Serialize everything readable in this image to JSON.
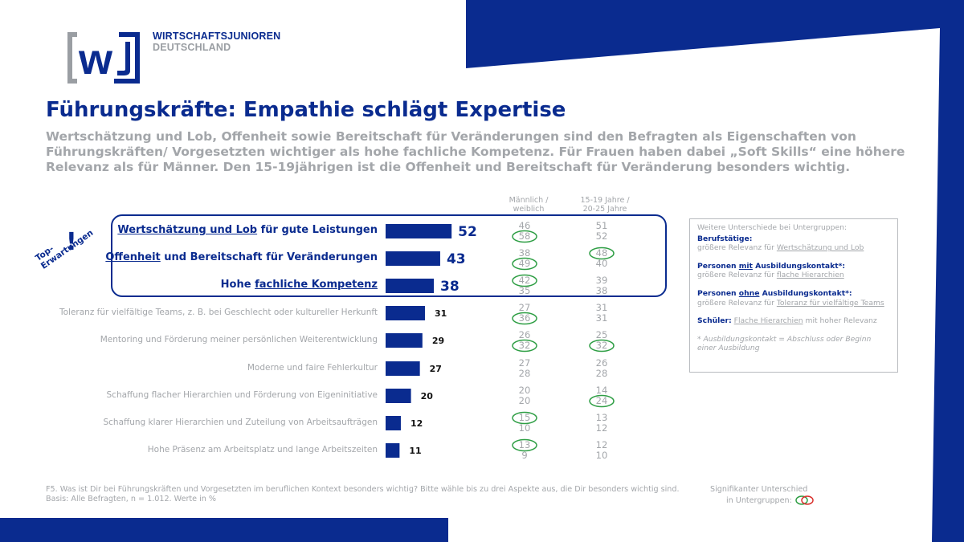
{
  "logo": {
    "letters": "[wJ]",
    "line1": "WIRTSCHAFTSJUNIOREN",
    "line2": "DEUTSCHLAND"
  },
  "title": "Führungskräfte: Empathie schlägt Expertise",
  "subtitle": "Wertschätzung und Lob, Offenheit sowie Bereitschaft für Veränderungen sind den Befragten als Eigenschaften von Führungskräften/ Vorgesetzten wichtiger als hohe fachliche Kompetenz. Für Frauen haben dabei „Soft Skills“ eine höhere Relevanz als für Männer. Den 15-19jährigen ist die Offenheit und Bereitschaft für Veränderung besonders wichtig.",
  "column_headers": {
    "gender": "Männlich /\nweiblich",
    "age": "15-19 Jahre /\n20-25 Jahre"
  },
  "top_expectations": {
    "mark": "!",
    "label": "Top-\nErwartungen"
  },
  "colors": {
    "brand": "#0a2b8f",
    "gray": "#a3a6aa",
    "significant_green": "#2e9e44",
    "significant_red": "#d9302c"
  },
  "chart_data": {
    "type": "bar",
    "orientation": "horizontal",
    "unit": "%",
    "categories": [
      "Wertschätzung und Lob für gute Leistungen",
      "Offenheit und Bereitschaft für Veränderungen",
      "Hohe fachliche Kompetenz",
      "Toleranz für vielfältige Teams, z. B. bei Geschlecht oder kultureller Herkunft",
      "Mentoring und Förderung meiner persönlichen Weiterentwicklung",
      "Moderne und faire Fehlerkultur",
      "Schaffung flacher Hierarchien und Förderung von Eigeninitiative",
      "Schaffung klarer Hierarchien und Zuteilung von Arbeitsaufträgen",
      "Hohe Präsenz am Arbeitsplatz und lange Arbeitszeiten"
    ],
    "values": [
      52,
      43,
      38,
      31,
      29,
      27,
      20,
      12,
      11
    ],
    "top_count": 3,
    "label_underline": [
      "Wertschätzung und Lob",
      "Offenheit",
      "fachliche Kompetenz",
      "",
      "",
      "",
      "",
      "",
      ""
    ],
    "subgroups": {
      "maennlich": [
        46,
        38,
        42,
        27,
        26,
        27,
        20,
        15,
        13
      ],
      "weiblich": [
        58,
        49,
        35,
        36,
        32,
        28,
        20,
        10,
        9
      ],
      "age_15_19": [
        51,
        48,
        39,
        31,
        25,
        26,
        14,
        13,
        12
      ],
      "age_20_25": [
        52,
        40,
        38,
        31,
        32,
        28,
        24,
        12,
        10
      ]
    },
    "significant": {
      "maennlich": [
        false,
        false,
        true,
        false,
        false,
        false,
        false,
        true,
        true
      ],
      "weiblich": [
        true,
        true,
        false,
        true,
        true,
        false,
        false,
        false,
        false
      ],
      "age_15_19": [
        false,
        true,
        false,
        false,
        false,
        false,
        false,
        false,
        false
      ],
      "age_20_25": [
        false,
        false,
        false,
        false,
        true,
        false,
        true,
        false,
        false
      ]
    }
  },
  "side_box": {
    "intro": "Weitere Unterschiede bei Untergruppen:",
    "g1_head": "Berufstätige:",
    "g1_text_a": "größere Relevanz für ",
    "g1_text_b": "Wertschätzung und Lob",
    "g2_head_a": "Personen ",
    "g2_head_b": "mit",
    "g2_head_c": " Ausbildungskontakt*:",
    "g2_text_a": "größere Relevanz für ",
    "g2_text_b": "flache Hierarchien",
    "g3_head_a": "Personen ",
    "g3_head_b": "ohne",
    "g3_head_c": " Ausbildungskontakt*:",
    "g3_text_a": "größere Relevanz für ",
    "g3_text_b": "Toleranz für vielfältige Teams",
    "g4_head": "Schüler:",
    "g4_text_a": " ",
    "g4_text_b": "Flache Hierarchien",
    "g4_text_c": " mit hoher Relevanz",
    "note": "* Ausbildungskontakt = Abschluss oder Beginn einer Ausbildung"
  },
  "footer": {
    "question": "F5. Was ist Dir bei Führungskräften und Vorgesetzten im beruflichen Kontext besonders wichtig? Bitte wähle bis zu drei Aspekte aus, die Dir besonders wichtig sind.",
    "basis": "Basis: Alle Befragten, n = 1.012. Werte in %"
  },
  "significance_legend": {
    "line1": "Signifikanter Unterschied",
    "line2": "in Untergruppen:"
  }
}
